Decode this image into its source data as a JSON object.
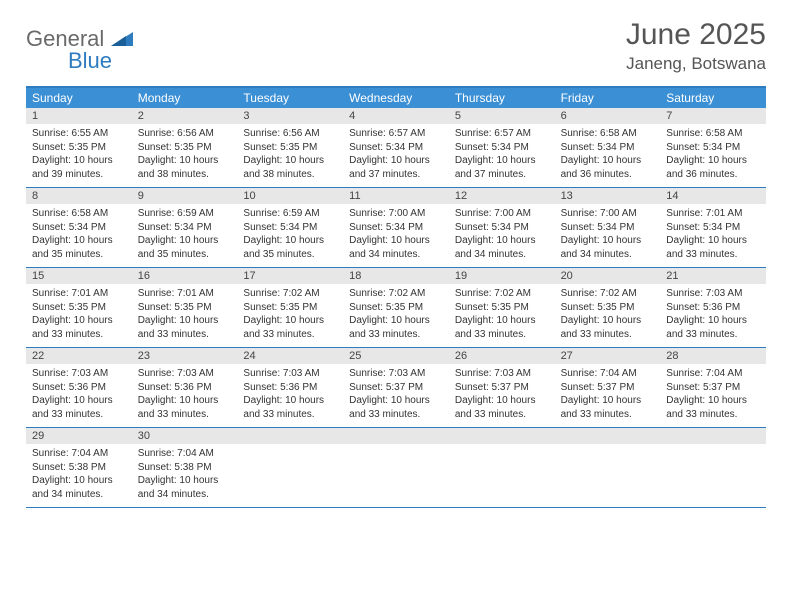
{
  "logo": {
    "general": "General",
    "blue": "Blue"
  },
  "title": "June 2025",
  "location": "Janeng, Botswana",
  "colors": {
    "header_bar": "#3b8fd4",
    "rule": "#2f7bbf",
    "daynum_bg": "#e7e7e7",
    "text": "#333333",
    "title_text": "#555555"
  },
  "days_of_week": [
    "Sunday",
    "Monday",
    "Tuesday",
    "Wednesday",
    "Thursday",
    "Friday",
    "Saturday"
  ],
  "weeks": [
    [
      {
        "n": "1",
        "sr": "Sunrise: 6:55 AM",
        "ss": "Sunset: 5:35 PM",
        "dl": "Daylight: 10 hours and 39 minutes."
      },
      {
        "n": "2",
        "sr": "Sunrise: 6:56 AM",
        "ss": "Sunset: 5:35 PM",
        "dl": "Daylight: 10 hours and 38 minutes."
      },
      {
        "n": "3",
        "sr": "Sunrise: 6:56 AM",
        "ss": "Sunset: 5:35 PM",
        "dl": "Daylight: 10 hours and 38 minutes."
      },
      {
        "n": "4",
        "sr": "Sunrise: 6:57 AM",
        "ss": "Sunset: 5:34 PM",
        "dl": "Daylight: 10 hours and 37 minutes."
      },
      {
        "n": "5",
        "sr": "Sunrise: 6:57 AM",
        "ss": "Sunset: 5:34 PM",
        "dl": "Daylight: 10 hours and 37 minutes."
      },
      {
        "n": "6",
        "sr": "Sunrise: 6:58 AM",
        "ss": "Sunset: 5:34 PM",
        "dl": "Daylight: 10 hours and 36 minutes."
      },
      {
        "n": "7",
        "sr": "Sunrise: 6:58 AM",
        "ss": "Sunset: 5:34 PM",
        "dl": "Daylight: 10 hours and 36 minutes."
      }
    ],
    [
      {
        "n": "8",
        "sr": "Sunrise: 6:58 AM",
        "ss": "Sunset: 5:34 PM",
        "dl": "Daylight: 10 hours and 35 minutes."
      },
      {
        "n": "9",
        "sr": "Sunrise: 6:59 AM",
        "ss": "Sunset: 5:34 PM",
        "dl": "Daylight: 10 hours and 35 minutes."
      },
      {
        "n": "10",
        "sr": "Sunrise: 6:59 AM",
        "ss": "Sunset: 5:34 PM",
        "dl": "Daylight: 10 hours and 35 minutes."
      },
      {
        "n": "11",
        "sr": "Sunrise: 7:00 AM",
        "ss": "Sunset: 5:34 PM",
        "dl": "Daylight: 10 hours and 34 minutes."
      },
      {
        "n": "12",
        "sr": "Sunrise: 7:00 AM",
        "ss": "Sunset: 5:34 PM",
        "dl": "Daylight: 10 hours and 34 minutes."
      },
      {
        "n": "13",
        "sr": "Sunrise: 7:00 AM",
        "ss": "Sunset: 5:34 PM",
        "dl": "Daylight: 10 hours and 34 minutes."
      },
      {
        "n": "14",
        "sr": "Sunrise: 7:01 AM",
        "ss": "Sunset: 5:34 PM",
        "dl": "Daylight: 10 hours and 33 minutes."
      }
    ],
    [
      {
        "n": "15",
        "sr": "Sunrise: 7:01 AM",
        "ss": "Sunset: 5:35 PM",
        "dl": "Daylight: 10 hours and 33 minutes."
      },
      {
        "n": "16",
        "sr": "Sunrise: 7:01 AM",
        "ss": "Sunset: 5:35 PM",
        "dl": "Daylight: 10 hours and 33 minutes."
      },
      {
        "n": "17",
        "sr": "Sunrise: 7:02 AM",
        "ss": "Sunset: 5:35 PM",
        "dl": "Daylight: 10 hours and 33 minutes."
      },
      {
        "n": "18",
        "sr": "Sunrise: 7:02 AM",
        "ss": "Sunset: 5:35 PM",
        "dl": "Daylight: 10 hours and 33 minutes."
      },
      {
        "n": "19",
        "sr": "Sunrise: 7:02 AM",
        "ss": "Sunset: 5:35 PM",
        "dl": "Daylight: 10 hours and 33 minutes."
      },
      {
        "n": "20",
        "sr": "Sunrise: 7:02 AM",
        "ss": "Sunset: 5:35 PM",
        "dl": "Daylight: 10 hours and 33 minutes."
      },
      {
        "n": "21",
        "sr": "Sunrise: 7:03 AM",
        "ss": "Sunset: 5:36 PM",
        "dl": "Daylight: 10 hours and 33 minutes."
      }
    ],
    [
      {
        "n": "22",
        "sr": "Sunrise: 7:03 AM",
        "ss": "Sunset: 5:36 PM",
        "dl": "Daylight: 10 hours and 33 minutes."
      },
      {
        "n": "23",
        "sr": "Sunrise: 7:03 AM",
        "ss": "Sunset: 5:36 PM",
        "dl": "Daylight: 10 hours and 33 minutes."
      },
      {
        "n": "24",
        "sr": "Sunrise: 7:03 AM",
        "ss": "Sunset: 5:36 PM",
        "dl": "Daylight: 10 hours and 33 minutes."
      },
      {
        "n": "25",
        "sr": "Sunrise: 7:03 AM",
        "ss": "Sunset: 5:37 PM",
        "dl": "Daylight: 10 hours and 33 minutes."
      },
      {
        "n": "26",
        "sr": "Sunrise: 7:03 AM",
        "ss": "Sunset: 5:37 PM",
        "dl": "Daylight: 10 hours and 33 minutes."
      },
      {
        "n": "27",
        "sr": "Sunrise: 7:04 AM",
        "ss": "Sunset: 5:37 PM",
        "dl": "Daylight: 10 hours and 33 minutes."
      },
      {
        "n": "28",
        "sr": "Sunrise: 7:04 AM",
        "ss": "Sunset: 5:37 PM",
        "dl": "Daylight: 10 hours and 33 minutes."
      }
    ],
    [
      {
        "n": "29",
        "sr": "Sunrise: 7:04 AM",
        "ss": "Sunset: 5:38 PM",
        "dl": "Daylight: 10 hours and 34 minutes."
      },
      {
        "n": "30",
        "sr": "Sunrise: 7:04 AM",
        "ss": "Sunset: 5:38 PM",
        "dl": "Daylight: 10 hours and 34 minutes."
      },
      null,
      null,
      null,
      null,
      null
    ]
  ]
}
